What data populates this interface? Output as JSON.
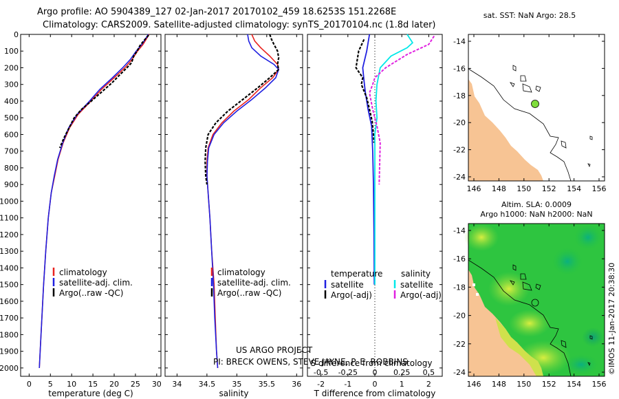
{
  "titles": {
    "line1": "Argo profile: AO 5904389_127 02-Jan-2017 20170102_459 18.6253S 151.2268E",
    "line2": "Climatology: CARS2009. Satellite-adjusted climatology: synTS_20170104.nc (1.8d later)"
  },
  "depth_ticks": [
    0,
    100,
    200,
    300,
    400,
    500,
    600,
    700,
    800,
    900,
    1000,
    1100,
    1200,
    1300,
    1400,
    1500,
    1600,
    1700,
    1800,
    1900,
    2000
  ],
  "colors": {
    "clim": "#e8231f",
    "sat": "#1f1fe0",
    "argo": "#000000",
    "sat_s": "#00e8e8",
    "argo_s": "#e020e0"
  },
  "chart_data": [
    {
      "type": "line",
      "title": "temperature profile",
      "xlabel": "temperature (deg C)",
      "xlim": [
        -2,
        31
      ],
      "xticks": [
        0,
        5,
        10,
        15,
        20,
        25,
        30
      ],
      "ylim": [
        0,
        2050
      ],
      "series": [
        {
          "name": "climatology",
          "points": [
            [
              28.2,
              0
            ],
            [
              27.5,
              30
            ],
            [
              26.8,
              60
            ],
            [
              25.5,
              100
            ],
            [
              24.2,
              150
            ],
            [
              22.5,
              200
            ],
            [
              20,
              260
            ],
            [
              17,
              330
            ],
            [
              14.5,
              400
            ],
            [
              11.5,
              480
            ],
            [
              9.5,
              560
            ],
            [
              8,
              650
            ],
            [
              6.8,
              750
            ],
            [
              6,
              850
            ],
            [
              5.2,
              950
            ],
            [
              4.5,
              1100
            ],
            [
              3.9,
              1300
            ],
            [
              3.4,
              1500
            ],
            [
              3.0,
              1700
            ],
            [
              2.6,
              1900
            ],
            [
              2.4,
              2000
            ]
          ]
        },
        {
          "name": "satellite-adj. clim.",
          "points": [
            [
              28,
              0
            ],
            [
              27.3,
              30
            ],
            [
              26.5,
              60
            ],
            [
              25.2,
              100
            ],
            [
              23.8,
              150
            ],
            [
              22,
              200
            ],
            [
              19.6,
              260
            ],
            [
              16.6,
              330
            ],
            [
              14.2,
              400
            ],
            [
              11.3,
              480
            ],
            [
              9.3,
              560
            ],
            [
              7.9,
              650
            ],
            [
              6.7,
              750
            ],
            [
              5.9,
              850
            ],
            [
              5.2,
              950
            ],
            [
              4.5,
              1100
            ],
            [
              3.9,
              1300
            ],
            [
              3.4,
              1500
            ],
            [
              3.0,
              1700
            ],
            [
              2.6,
              1900
            ],
            [
              2.4,
              2000
            ]
          ]
        },
        {
          "name": "Argo(..raw -QC)",
          "points": [
            [
              28.1,
              5
            ],
            [
              27.6,
              20
            ],
            [
              26.9,
              40
            ],
            [
              26,
              70
            ],
            [
              25.4,
              100
            ],
            [
              24.6,
              130
            ],
            [
              24.1,
              170
            ],
            [
              23,
              200
            ],
            [
              21.4,
              240
            ],
            [
              19.5,
              290
            ],
            [
              17.3,
              340
            ],
            [
              14.6,
              400
            ],
            [
              12.3,
              450
            ],
            [
              10.6,
              500
            ],
            [
              9.4,
              560
            ],
            [
              8.2,
              620
            ],
            [
              7.2,
              680
            ]
          ]
        }
      ]
    },
    {
      "type": "line",
      "title": "salinity profile",
      "xlabel": "salinity",
      "xlim": [
        33.8,
        36.1
      ],
      "xticks": [
        34,
        34.5,
        35,
        35.5,
        36
      ],
      "ylim": [
        0,
        2050
      ],
      "series": [
        {
          "name": "climatology",
          "points": [
            [
              35.25,
              0
            ],
            [
              35.3,
              40
            ],
            [
              35.4,
              80
            ],
            [
              35.55,
              130
            ],
            [
              35.68,
              180
            ],
            [
              35.7,
              210
            ],
            [
              35.6,
              260
            ],
            [
              35.4,
              320
            ],
            [
              35.2,
              390
            ],
            [
              34.95,
              460
            ],
            [
              34.75,
              530
            ],
            [
              34.6,
              600
            ],
            [
              34.52,
              680
            ],
            [
              34.5,
              760
            ],
            [
              34.5,
              850
            ],
            [
              34.52,
              950
            ],
            [
              34.55,
              1100
            ],
            [
              34.58,
              1300
            ],
            [
              34.62,
              1500
            ],
            [
              34.64,
              1700
            ],
            [
              34.66,
              1900
            ],
            [
              34.68,
              2000
            ]
          ]
        },
        {
          "name": "satellite-adj. clim.",
          "points": [
            [
              35.18,
              0
            ],
            [
              35.2,
              40
            ],
            [
              35.25,
              80
            ],
            [
              35.4,
              130
            ],
            [
              35.62,
              180
            ],
            [
              35.7,
              210
            ],
            [
              35.65,
              260
            ],
            [
              35.48,
              320
            ],
            [
              35.25,
              390
            ],
            [
              35.0,
              460
            ],
            [
              34.78,
              530
            ],
            [
              34.62,
              600
            ],
            [
              34.53,
              680
            ],
            [
              34.51,
              760
            ],
            [
              34.5,
              850
            ],
            [
              34.52,
              950
            ],
            [
              34.55,
              1100
            ],
            [
              34.58,
              1300
            ],
            [
              34.61,
              1500
            ],
            [
              34.63,
              1700
            ],
            [
              34.66,
              1900
            ],
            [
              34.68,
              2000
            ]
          ]
        },
        {
          "name": "Argo(..raw -QC)",
          "points": [
            [
              35.55,
              0
            ],
            [
              35.58,
              30
            ],
            [
              35.62,
              60
            ],
            [
              35.68,
              100
            ],
            [
              35.7,
              140
            ],
            [
              35.68,
              180
            ],
            [
              35.7,
              210
            ],
            [
              35.55,
              260
            ],
            [
              35.35,
              320
            ],
            [
              35.1,
              390
            ],
            [
              34.85,
              460
            ],
            [
              34.65,
              530
            ],
            [
              34.52,
              600
            ],
            [
              34.48,
              680
            ],
            [
              34.47,
              760
            ],
            [
              34.48,
              850
            ],
            [
              34.5,
              900
            ]
          ]
        }
      ]
    },
    {
      "type": "line",
      "title": "difference from climatology",
      "xlabel": "T difference from climatology",
      "xlabel_top": "S difference from climatology",
      "xlim": [
        -2.5,
        2.5
      ],
      "xticks": [
        -2,
        -1,
        0,
        1,
        2
      ],
      "xticks_top": [
        -0.5,
        -0.25,
        0,
        0.25,
        0.5
      ],
      "ylim": [
        0,
        2050
      ],
      "series": [
        {
          "name": "temperature satellite",
          "points": [
            [
              -0.2,
              0
            ],
            [
              -0.3,
              100
            ],
            [
              -0.45,
              200
            ],
            [
              -0.4,
              280
            ],
            [
              -0.35,
              350
            ],
            [
              -0.25,
              450
            ],
            [
              -0.12,
              550
            ],
            [
              -0.08,
              700
            ],
            [
              -0.05,
              900
            ],
            [
              -0.03,
              1200
            ],
            [
              -0.02,
              1500
            ]
          ]
        },
        {
          "name": "temperature Argo(-adj)",
          "points": [
            [
              -0.4,
              30
            ],
            [
              -0.6,
              100
            ],
            [
              -0.7,
              200
            ],
            [
              -0.45,
              260
            ],
            [
              -0.5,
              300
            ],
            [
              -0.3,
              380
            ],
            [
              -0.2,
              450
            ],
            [
              -0.1,
              520
            ],
            [
              -0.05,
              600
            ],
            [
              -0.03,
              650
            ]
          ]
        },
        {
          "name": "salinity satellite",
          "points": [
            [
              0.3,
              0
            ],
            [
              0.35,
              50
            ],
            [
              0.3,
              80
            ],
            [
              0.15,
              130
            ],
            [
              0.05,
              200
            ],
            [
              0.02,
              300
            ],
            [
              0.01,
              400
            ],
            [
              0.02,
              500
            ],
            [
              0.0,
              600
            ],
            [
              0.0,
              900
            ],
            [
              0.0,
              1500
            ]
          ]
        },
        {
          "name": "salinity Argo(-adj)",
          "points": [
            [
              0.55,
              10
            ],
            [
              0.5,
              60
            ],
            [
              0.3,
              120
            ],
            [
              0.1,
              200
            ],
            [
              0.0,
              260
            ],
            [
              -0.02,
              300
            ],
            [
              -0.05,
              350
            ],
            [
              -0.02,
              450
            ],
            [
              0.02,
              550
            ],
            [
              0.05,
              650
            ],
            [
              0.04,
              900
            ]
          ]
        }
      ]
    }
  ],
  "legends": {
    "panel1": [
      "climatology",
      "satellite-adj. clim.",
      "Argo(..raw -QC)"
    ],
    "panel2": [
      "climatology",
      "satellite-adj. clim.",
      "Argo(..raw -QC)"
    ],
    "panel3_t_title": "temperature",
    "panel3_s_title": "salinity",
    "panel3_t": [
      "satellite",
      "Argo(-adj)"
    ],
    "panel3_s": [
      "satellite",
      "Argo(-adj)"
    ]
  },
  "credits": {
    "line1": "US ARGO PROJECT",
    "line2": "PI: BRECK OWENS, STEVE JAYNE, P. E. ROBBINS"
  },
  "map1": {
    "title": "sat. SST: NaN Argo: 28.5",
    "xticks": [
      "146",
      "148",
      "150",
      "152",
      "154",
      "156"
    ],
    "yticks": [
      "-14",
      "-16",
      "-18",
      "-20",
      "-22",
      "-24"
    ]
  },
  "map2": {
    "title1": "Altim. SLA: 0.0009",
    "title2": "Argo h1000: NaN h2000: NaN",
    "xticks": [
      "146",
      "148",
      "150",
      "152",
      "154",
      "156"
    ],
    "yticks": [
      "-14",
      "-16",
      "-18",
      "-20",
      "-22",
      "-24"
    ]
  },
  "stamp": "©IMOS 11-Jan-2017 20:38:30"
}
